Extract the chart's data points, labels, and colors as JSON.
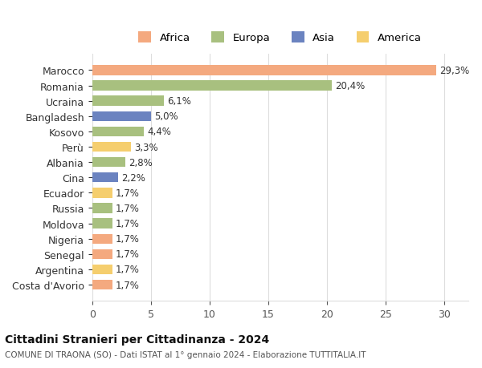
{
  "categories": [
    "Costa d'Avorio",
    "Argentina",
    "Senegal",
    "Nigeria",
    "Moldova",
    "Russia",
    "Ecuador",
    "Cina",
    "Albania",
    "Perù",
    "Kosovo",
    "Bangladesh",
    "Ucraina",
    "Romania",
    "Marocco"
  ],
  "values": [
    1.7,
    1.7,
    1.7,
    1.7,
    1.7,
    1.7,
    1.7,
    2.2,
    2.8,
    3.3,
    4.4,
    5.0,
    6.1,
    20.4,
    29.3
  ],
  "colors": [
    "#F4A97F",
    "#F5CE6E",
    "#F4A97F",
    "#F4A97F",
    "#A8C07F",
    "#A8C07F",
    "#F5CE6E",
    "#6B83C0",
    "#A8C07F",
    "#F5CE6E",
    "#A8C07F",
    "#6B83C0",
    "#A8C07F",
    "#A8C07F",
    "#F4A97F"
  ],
  "labels": [
    "1,7%",
    "1,7%",
    "1,7%",
    "1,7%",
    "1,7%",
    "1,7%",
    "1,7%",
    "2,2%",
    "2,8%",
    "3,3%",
    "4,4%",
    "5,0%",
    "6,1%",
    "20,4%",
    "29,3%"
  ],
  "continent_colors": {
    "Africa": "#F4A97F",
    "Europa": "#A8C07F",
    "Asia": "#6B83C0",
    "America": "#F5CE6E"
  },
  "legend_labels": [
    "Africa",
    "Europa",
    "Asia",
    "America"
  ],
  "title": "Cittadini Stranieri per Cittadinanza - 2024",
  "subtitle": "COMUNE DI TRAONA (SO) - Dati ISTAT al 1° gennaio 2024 - Elaborazione TUTTITALIA.IT",
  "xlim": [
    0,
    32
  ],
  "xticks": [
    0,
    5,
    10,
    15,
    20,
    25,
    30
  ],
  "background_color": "#ffffff",
  "grid_color": "#dddddd"
}
